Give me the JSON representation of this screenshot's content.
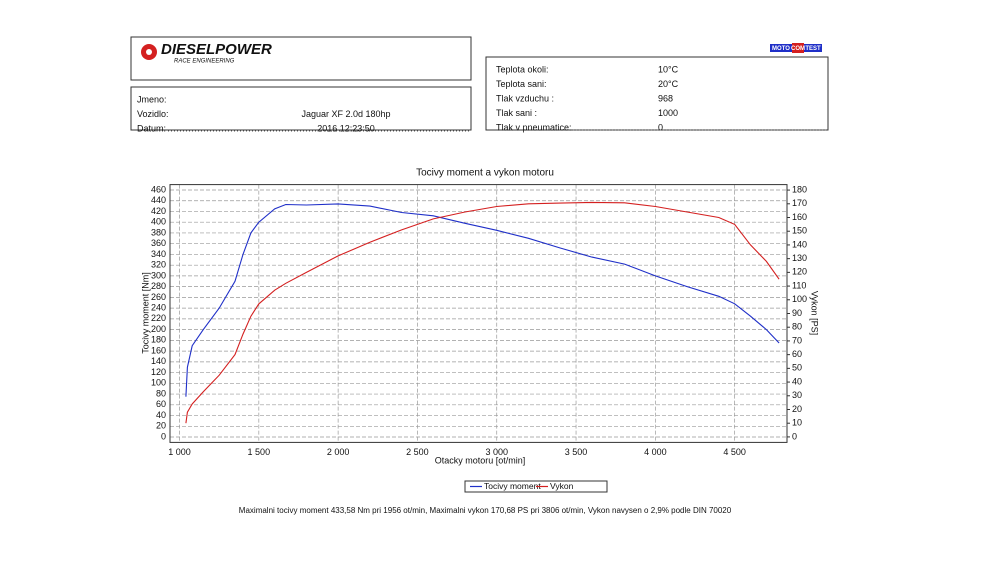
{
  "header": {
    "logo": "DIESELPOWER",
    "logo_sub": "RACE ENGINEERING",
    "badge": [
      "MOTO",
      "COM",
      "TEST"
    ]
  },
  "vehicle": {
    "rows": [
      [
        "Jmeno:",
        ""
      ],
      [
        "Vozidlo:",
        "Jaguar XF 2.0d 180hp"
      ],
      [
        "Datum:",
        "2016 12:23:50"
      ]
    ]
  },
  "conditions": {
    "rows": [
      [
        "Teplota okoli:",
        "10°C"
      ],
      [
        "Teplota sani:",
        "20°C"
      ],
      [
        "Tlak vzduchu :",
        "968"
      ],
      [
        "Tlak sani :",
        "1000"
      ],
      [
        "Tlak v pneumatice:",
        "0"
      ]
    ]
  },
  "chart_data": {
    "type": "line",
    "title": "Tocivy moment a vykon motoru",
    "x_label": "Otacky motoru [ot/min]",
    "y_label": "Tocivy moment [Nm]",
    "y2_label": "Vykon [PS]",
    "x": [
      1040,
      1050,
      1080,
      1150,
      1250,
      1350,
      1400,
      1450,
      1500,
      1600,
      1670,
      1800,
      2000,
      2200,
      2400,
      2600,
      2800,
      3000,
      3200,
      3400,
      3600,
      3806,
      4000,
      4200,
      4400,
      4500,
      4600,
      4700,
      4780
    ],
    "series": [
      {
        "name": "Tocivy moment",
        "color": "#1f2fc8",
        "values": [
          75,
          130,
          170,
          200,
          240,
          290,
          340,
          380,
          400,
          425,
          433,
          432,
          434,
          430,
          418,
          412,
          398,
          385,
          370,
          352,
          335,
          322,
          300,
          280,
          262,
          248,
          225,
          200,
          175
        ]
      },
      {
        "name": "Vykon",
        "color": "#d42020",
        "axis": "y2",
        "values": [
          10,
          18,
          24,
          33,
          45,
          60,
          75,
          88,
          97,
          107,
          112,
          120,
          132,
          142,
          151,
          159,
          164,
          168,
          170,
          170.5,
          171,
          170.7,
          168,
          164,
          160,
          155,
          140,
          128,
          115
        ]
      }
    ],
    "xlim": [
      940,
      4830
    ],
    "ylim": [
      -10,
      470
    ],
    "y2lim": [
      -4,
      184
    ],
    "xticks": [
      {
        "value": 1000,
        "label": "1 000"
      },
      {
        "value": 1500,
        "label": "1 500"
      },
      {
        "value": 2000,
        "label": "2 000"
      },
      {
        "value": 2500,
        "label": "2 500"
      },
      {
        "value": 3000,
        "label": "3 000"
      },
      {
        "value": 3500,
        "label": "3 500"
      },
      {
        "value": 4000,
        "label": "4 000"
      },
      {
        "value": 4500,
        "label": "4 500"
      }
    ],
    "yticks": [
      0,
      20,
      40,
      60,
      80,
      100,
      120,
      140,
      160,
      180,
      200,
      220,
      240,
      260,
      280,
      300,
      320,
      340,
      360,
      380,
      400,
      420,
      440,
      460
    ],
    "y2ticks": [
      0,
      10,
      20,
      30,
      40,
      50,
      60,
      70,
      80,
      90,
      100,
      110,
      120,
      130,
      140,
      150,
      160,
      170,
      180
    ],
    "grid": true,
    "note": "Maximalni tocivy moment 433,58 Nm pri 1956 ot/min,  Maximalni vykon 170,68 PS pri 3806 ot/min,  Vykon navysen o 2,9% podle DIN 70020"
  }
}
